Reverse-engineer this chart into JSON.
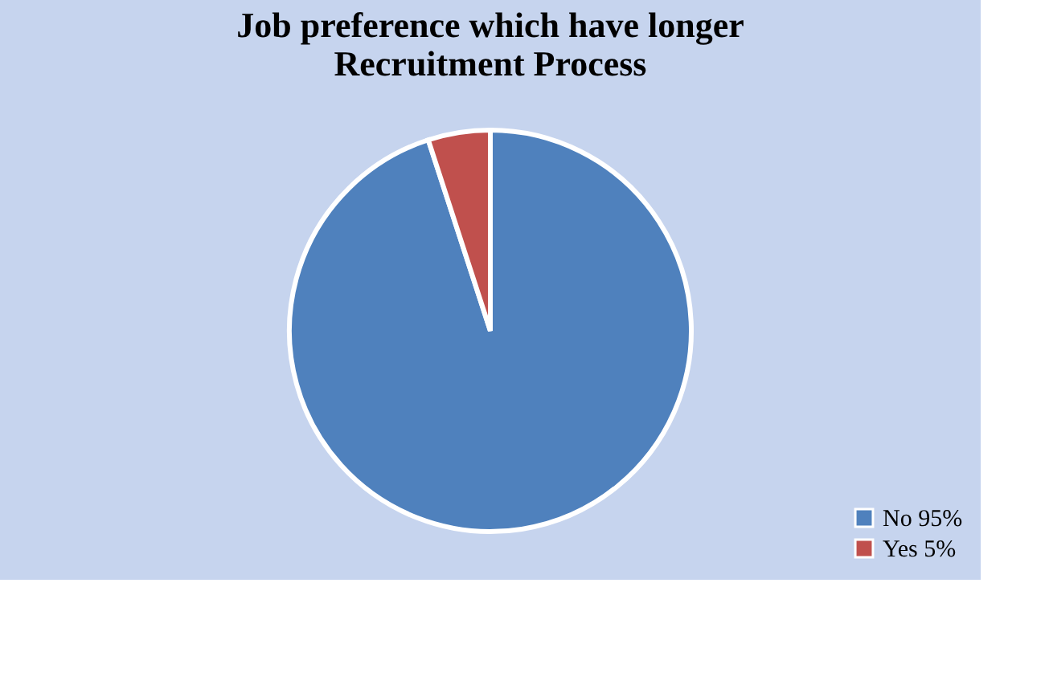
{
  "chart_data": {
    "type": "pie",
    "title": "Job preference which have longer Recruitment Process",
    "categories": [
      "No 95%",
      "Yes 5%"
    ],
    "values": [
      95,
      5
    ],
    "colors": [
      "#4f81bd",
      "#c0504d"
    ],
    "legend": "bottom right"
  }
}
